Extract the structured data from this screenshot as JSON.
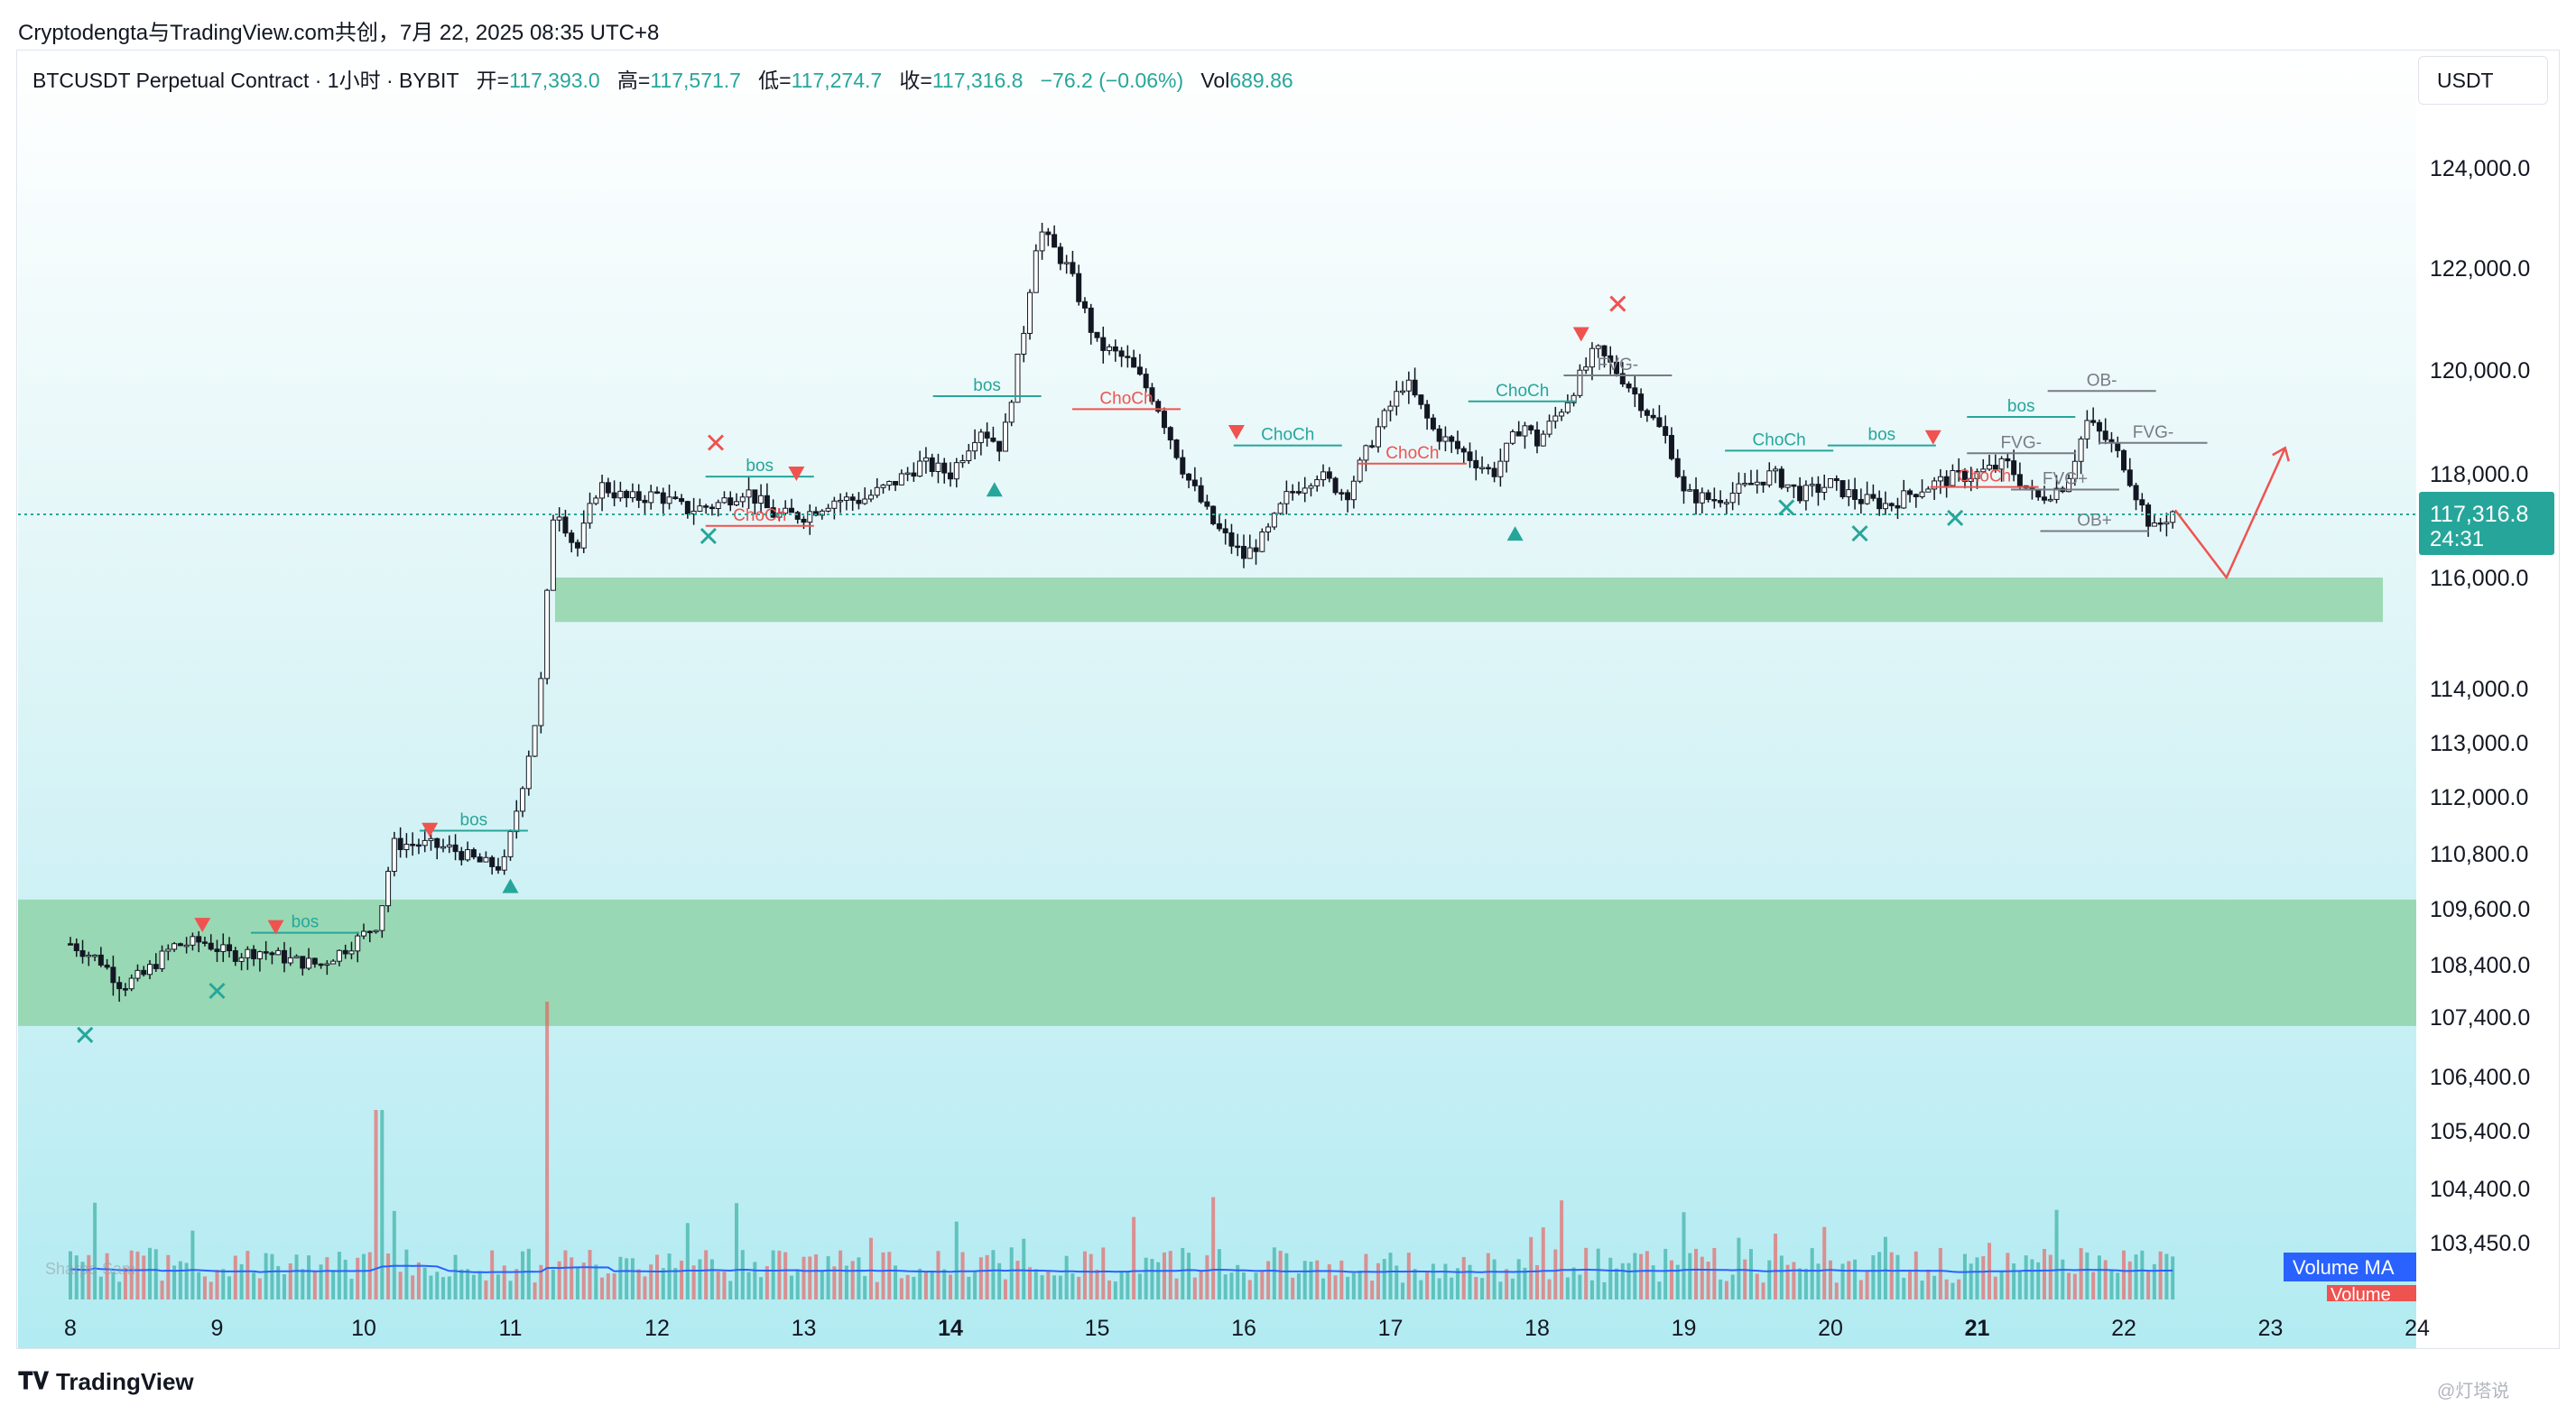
{
  "header": {
    "share_line": "Cryptodengta与TradingView.com共创，7月 22, 2025 08:35 UTC+8"
  },
  "legend": {
    "symbol": "BTCUSDT Perpetual Contract · 1小时 · BYBIT",
    "open_label": "开=",
    "open": "117,393.0",
    "high_label": "高=",
    "high": "117,571.7",
    "low_label": "低=",
    "low": "117,274.7",
    "close_label": "收=",
    "close": "117,316.8",
    "change": "−76.2 (−0.06%)",
    "vol_label": "Vol",
    "vol": "689.86"
  },
  "currency": "USDT",
  "price_tag": {
    "price": "117,316.8",
    "countdown": "24:31"
  },
  "footer": {
    "brand": "TradingView",
    "watermark": "@灯塔说"
  },
  "indicators": {
    "volume_ma": "Volume MA",
    "volume": "Volume",
    "faint_label": "Sharpe Sam"
  },
  "colors": {
    "up": "#26a69a",
    "down": "#ef5350",
    "zone": "#8fd3a8",
    "bg_top": "#ffffff",
    "bg_bottom": "#b2ebf2",
    "ma": "#2962ff"
  },
  "chart_data": {
    "type": "candlestick",
    "y_ticks": [
      "124,000.0",
      "122,000.0",
      "120,000.0",
      "118,000.0",
      "116,000.0",
      "114,000.0",
      "113,000.0",
      "112,000.0",
      "110,800.0",
      "109,600.0",
      "108,400.0",
      "107,400.0",
      "106,400.0",
      "105,400.0",
      "104,400.0",
      "103,450.0"
    ],
    "x_ticks": [
      {
        "label": "8",
        "bold": false
      },
      {
        "label": "9",
        "bold": false
      },
      {
        "label": "10",
        "bold": false
      },
      {
        "label": "11",
        "bold": false
      },
      {
        "label": "12",
        "bold": false
      },
      {
        "label": "13",
        "bold": false
      },
      {
        "label": "14",
        "bold": true
      },
      {
        "label": "15",
        "bold": false
      },
      {
        "label": "16",
        "bold": false
      },
      {
        "label": "17",
        "bold": false
      },
      {
        "label": "18",
        "bold": false
      },
      {
        "label": "19",
        "bold": false
      },
      {
        "label": "20",
        "bold": false
      },
      {
        "label": "21",
        "bold": true
      },
      {
        "label": "22",
        "bold": false
      },
      {
        "label": "23",
        "bold": false
      },
      {
        "label": "24",
        "bold": false
      }
    ],
    "price_path": [
      [
        8.0,
        108850
      ],
      [
        8.2,
        108500
      ],
      [
        8.35,
        108000
      ],
      [
        8.5,
        108200
      ],
      [
        8.7,
        108800
      ],
      [
        8.9,
        108900
      ],
      [
        9.1,
        108600
      ],
      [
        9.3,
        108700
      ],
      [
        9.5,
        108500
      ],
      [
        9.7,
        108400
      ],
      [
        9.9,
        108800
      ],
      [
        10.1,
        109300
      ],
      [
        10.2,
        111000
      ],
      [
        10.4,
        111000
      ],
      [
        10.6,
        110900
      ],
      [
        10.8,
        110600
      ],
      [
        10.95,
        110500
      ],
      [
        11.1,
        112500
      ],
      [
        11.2,
        113800
      ],
      [
        11.3,
        117500
      ],
      [
        11.45,
        116500
      ],
      [
        11.6,
        117800
      ],
      [
        11.8,
        117500
      ],
      [
        12.0,
        117600
      ],
      [
        12.2,
        117300
      ],
      [
        12.4,
        117400
      ],
      [
        12.6,
        117700
      ],
      [
        12.8,
        117200
      ],
      [
        13.0,
        117200
      ],
      [
        13.2,
        117500
      ],
      [
        13.4,
        117500
      ],
      [
        13.6,
        117800
      ],
      [
        13.8,
        118200
      ],
      [
        14.0,
        118000
      ],
      [
        14.2,
        118900
      ],
      [
        14.35,
        118500
      ],
      [
        14.5,
        120800
      ],
      [
        14.6,
        122800
      ],
      [
        14.8,
        122000
      ],
      [
        15.0,
        120500
      ],
      [
        15.2,
        120200
      ],
      [
        15.4,
        119400
      ],
      [
        15.6,
        118000
      ],
      [
        15.8,
        117000
      ],
      [
        16.0,
        116400
      ],
      [
        16.15,
        116800
      ],
      [
        16.3,
        117600
      ],
      [
        16.5,
        118000
      ],
      [
        16.7,
        117600
      ],
      [
        16.9,
        118800
      ],
      [
        17.1,
        119800
      ],
      [
        17.3,
        118800
      ],
      [
        17.5,
        118400
      ],
      [
        17.7,
        118000
      ],
      [
        17.9,
        119000
      ],
      [
        18.0,
        118600
      ],
      [
        18.2,
        119400
      ],
      [
        18.4,
        120400
      ],
      [
        18.6,
        119800
      ],
      [
        18.8,
        119000
      ],
      [
        18.9,
        118600
      ],
      [
        19.0,
        117600
      ],
      [
        19.2,
        117500
      ],
      [
        19.4,
        117700
      ],
      [
        19.6,
        118000
      ],
      [
        19.8,
        117600
      ],
      [
        20.0,
        117800
      ],
      [
        20.2,
        117500
      ],
      [
        20.4,
        117400
      ],
      [
        20.6,
        117700
      ],
      [
        20.8,
        117900
      ],
      [
        21.0,
        118000
      ],
      [
        21.2,
        118200
      ],
      [
        21.4,
        117500
      ],
      [
        21.6,
        117800
      ],
      [
        21.75,
        119000
      ],
      [
        21.9,
        118600
      ],
      [
        22.0,
        118200
      ],
      [
        22.1,
        117500
      ],
      [
        22.2,
        116900
      ],
      [
        22.35,
        117320
      ]
    ],
    "projection": [
      [
        22.35,
        117300
      ],
      [
        22.7,
        116000
      ],
      [
        23.1,
        118500
      ]
    ],
    "demand_zones": [
      [
        115200,
        116000
      ],
      [
        107250,
        109800
      ]
    ],
    "markers": [
      {
        "text": "bos",
        "day": 12.7,
        "price": 118050,
        "color": "#26a69a"
      },
      {
        "text": "bos",
        "day": 14.25,
        "price": 119600,
        "color": "#26a69a"
      },
      {
        "text": "bos",
        "day": 10.75,
        "price": 111400,
        "color": "#26a69a"
      },
      {
        "text": "bos",
        "day": 9.6,
        "price": 109200,
        "color": "#26a69a"
      },
      {
        "text": "bos",
        "day": 20.35,
        "price": 118650,
        "color": "#26a69a"
      },
      {
        "text": "bos",
        "day": 21.3,
        "price": 119200,
        "color": "#26a69a"
      },
      {
        "text": "ChoCh",
        "day": 12.7,
        "price": 117100,
        "color": "#ef5350"
      },
      {
        "text": "ChoCh",
        "day": 15.2,
        "price": 119350,
        "color": "#ef5350"
      },
      {
        "text": "ChoCh",
        "day": 16.3,
        "price": 118650,
        "color": "#26a69a"
      },
      {
        "text": "ChoCh",
        "day": 17.15,
        "price": 118300,
        "color": "#ef5350"
      },
      {
        "text": "ChoCh",
        "day": 17.9,
        "price": 119500,
        "color": "#26a69a"
      },
      {
        "text": "ChoCh",
        "day": 19.65,
        "price": 118550,
        "color": "#26a69a"
      },
      {
        "text": "ChoCh",
        "day": 21.05,
        "price": 117850,
        "color": "#ef5350"
      },
      {
        "text": "FVG-",
        "day": 21.3,
        "price": 118500,
        "color": "#787b86"
      },
      {
        "text": "FVG-",
        "day": 18.55,
        "price": 120000,
        "color": "#787b86"
      },
      {
        "text": "FVG+",
        "day": 21.6,
        "price": 117800,
        "color": "#787b86"
      },
      {
        "text": "OB-",
        "day": 21.85,
        "price": 119700,
        "color": "#787b86"
      },
      {
        "text": "OB+",
        "day": 21.8,
        "price": 117000,
        "color": "#787b86"
      },
      {
        "text": "FVG-",
        "day": 22.2,
        "price": 118700,
        "color": "#787b86"
      }
    ]
  }
}
